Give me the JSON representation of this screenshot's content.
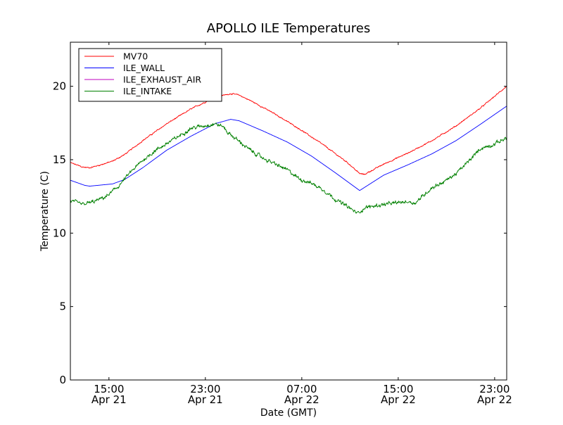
{
  "chart_data": {
    "type": "line",
    "title": "APOLLO ILE Temperatures",
    "xlabel": "Date (GMT)",
    "ylabel": "Temperature (C)",
    "x_unit": "hours since Apr 21 11:00 GMT",
    "xlim": [
      0,
      36.2
    ],
    "ylim": [
      0,
      23
    ],
    "grid": false,
    "legend_position": "top-left",
    "yticks": [
      {
        "value": 0,
        "label": "0"
      },
      {
        "value": 5,
        "label": "5"
      },
      {
        "value": 10,
        "label": "10"
      },
      {
        "value": 15,
        "label": "15"
      },
      {
        "value": 20,
        "label": "20"
      }
    ],
    "xticks": [
      {
        "value": 3.2,
        "label": "15:00",
        "sublabel": "Apr 21"
      },
      {
        "value": 11.2,
        "label": "23:00",
        "sublabel": "Apr 21"
      },
      {
        "value": 19.2,
        "label": "07:00",
        "sublabel": "Apr 22"
      },
      {
        "value": 27.2,
        "label": "15:00",
        "sublabel": "Apr 22"
      },
      {
        "value": 35.2,
        "label": "23:00",
        "sublabel": "Apr 22"
      }
    ],
    "series": [
      {
        "name": "MV70",
        "color": "#ff0000",
        "noise": 0.04,
        "x": [
          0,
          1,
          1.6,
          2.5,
          3.5,
          4.5,
          6,
          8,
          10,
          12,
          13.3,
          14,
          15,
          17,
          19,
          21,
          23,
          24,
          24.4,
          26,
          28,
          30,
          32,
          34,
          36.2
        ],
        "y": [
          14.8,
          14.5,
          14.45,
          14.65,
          14.9,
          15.35,
          16.3,
          17.45,
          18.45,
          19.25,
          19.5,
          19.4,
          19.0,
          18.1,
          17.1,
          16.0,
          14.8,
          14.05,
          14.0,
          14.7,
          15.45,
          16.3,
          17.3,
          18.5,
          20.0
        ]
      },
      {
        "name": "ILE_WALL",
        "color": "#0000ff",
        "noise": 0,
        "x": [
          0,
          1.2,
          1.6,
          3.5,
          4.5,
          6,
          8,
          10,
          12,
          13.3,
          14,
          16,
          18,
          20,
          22,
          24,
          26,
          28,
          30,
          32,
          34,
          36.2
        ],
        "y": [
          13.6,
          13.25,
          13.2,
          13.35,
          13.65,
          14.45,
          15.65,
          16.6,
          17.45,
          17.75,
          17.65,
          16.95,
          16.2,
          15.25,
          14.1,
          12.9,
          13.95,
          14.65,
          15.4,
          16.3,
          17.4,
          18.65
        ]
      },
      {
        "name": "ILE_EXHAUST_AIR",
        "color": "#bf00bf",
        "noise": 0,
        "x": [],
        "y": []
      },
      {
        "name": "ILE_INTAKE",
        "color": "#008000",
        "noise": 0.12,
        "x": [
          0,
          1,
          2,
          3,
          4,
          5,
          6,
          7,
          8,
          9,
          10,
          11,
          12,
          12.7,
          13,
          14,
          15,
          16,
          17,
          18,
          19,
          20,
          21,
          22,
          23,
          23.8,
          24.5,
          26,
          28,
          28.6,
          30,
          31,
          32,
          33,
          34,
          35,
          36.2
        ],
        "y": [
          12.2,
          11.95,
          12.15,
          12.5,
          13.2,
          14.15,
          14.95,
          15.6,
          16.1,
          16.6,
          17.15,
          17.3,
          17.45,
          17.25,
          16.9,
          16.25,
          15.6,
          15.1,
          14.7,
          14.3,
          13.7,
          13.4,
          12.95,
          12.3,
          11.8,
          11.35,
          11.75,
          11.95,
          12.15,
          12.05,
          13.1,
          13.5,
          14.05,
          14.85,
          15.75,
          16.0,
          16.5
        ]
      }
    ]
  }
}
